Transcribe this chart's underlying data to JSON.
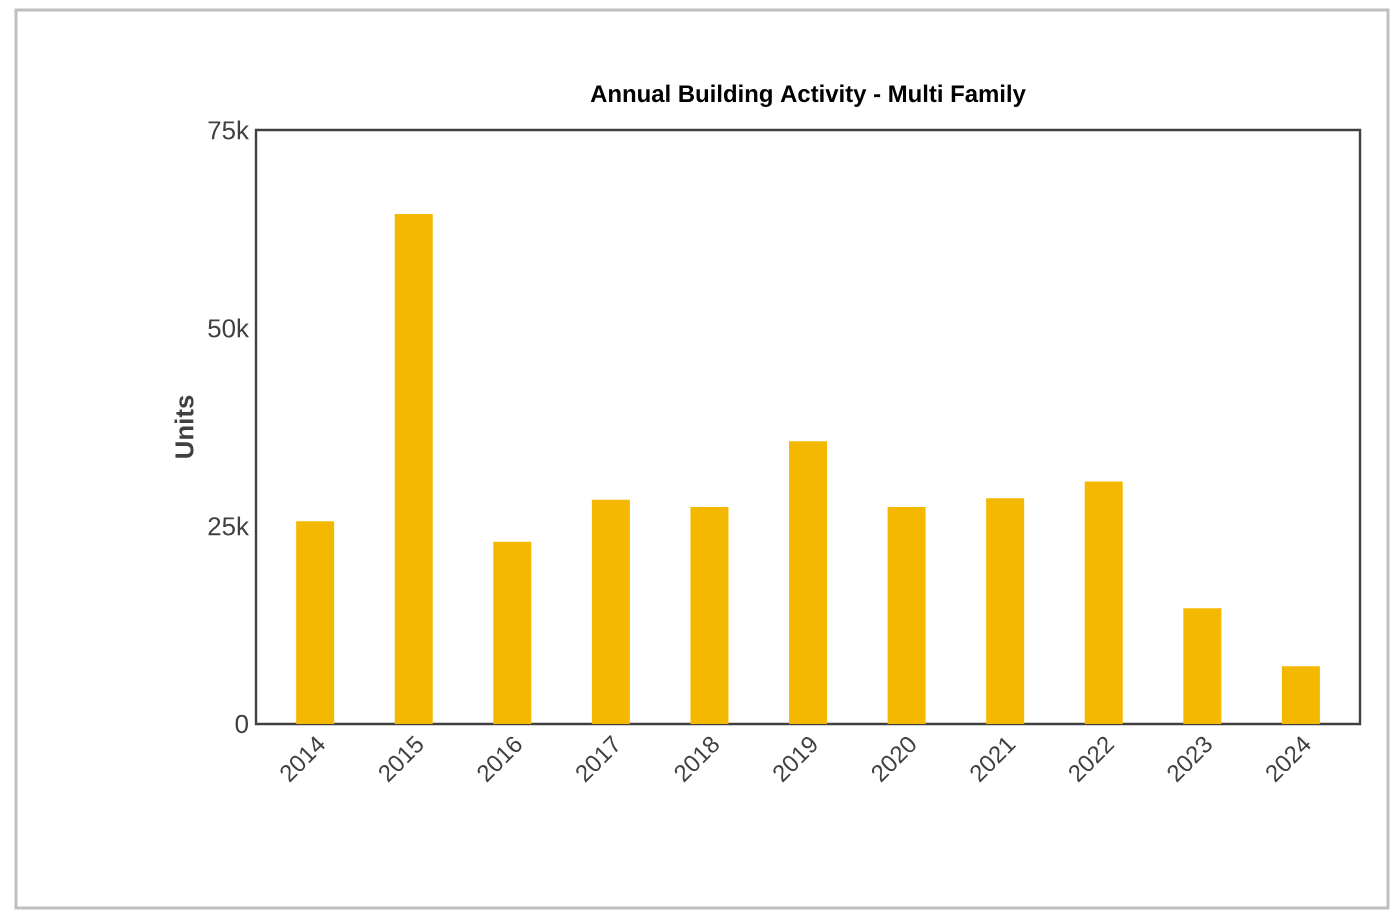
{
  "chart_data": {
    "type": "bar",
    "title": "Annual Building Activity - Multi Family",
    "ylabel": "Units",
    "categories": [
      "2014",
      "2015",
      "2016",
      "2017",
      "2018",
      "2019",
      "2020",
      "2021",
      "2022",
      "2023",
      "2024"
    ],
    "values": [
      25600,
      64400,
      23000,
      28300,
      27400,
      35700,
      27400,
      28500,
      30600,
      14600,
      7300
    ],
    "color": "#f5b800",
    "ylim": [
      0,
      75000
    ],
    "yticks": [
      {
        "value": 0,
        "label": "0"
      },
      {
        "value": 25000,
        "label": "25k"
      },
      {
        "value": 50000,
        "label": "50k"
      },
      {
        "value": 75000,
        "label": "75k"
      }
    ]
  }
}
